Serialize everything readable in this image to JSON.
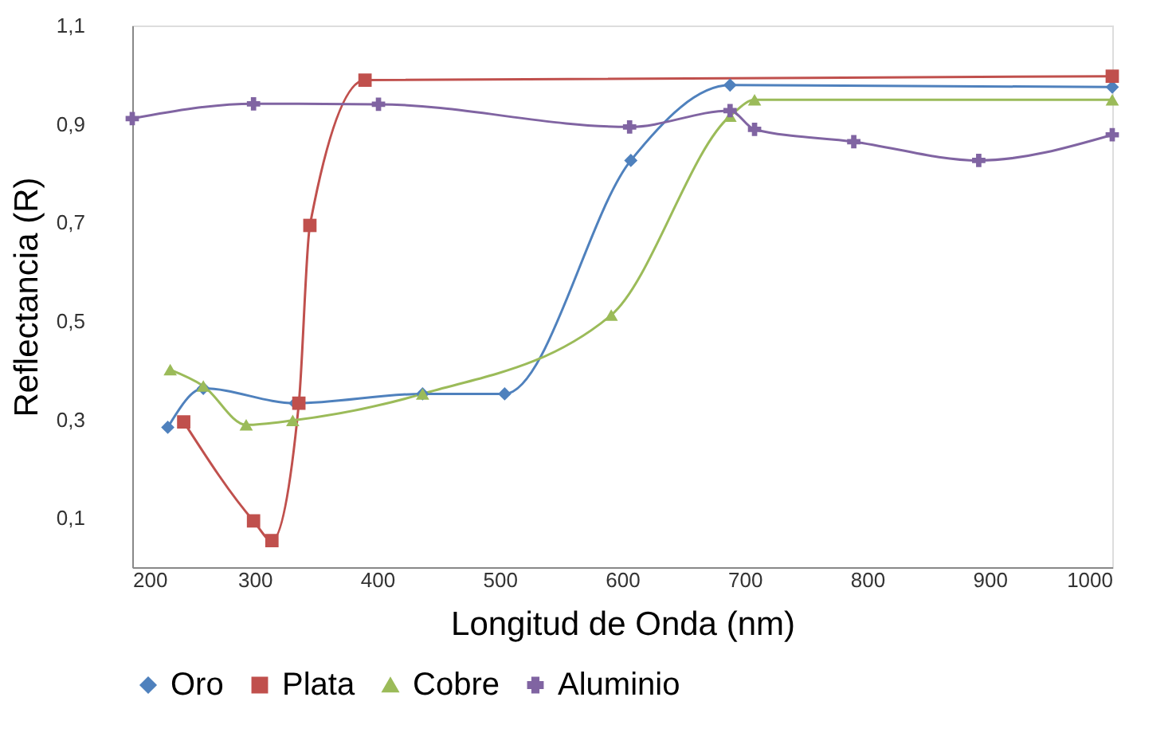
{
  "chart_data": {
    "type": "line",
    "xlabel": "Longitud de Onda (nm)",
    "ylabel": "Reflectancia (R)",
    "xlim": [
      200,
      1000
    ],
    "xticks": [
      200,
      300,
      400,
      500,
      600,
      700,
      800,
      900,
      1000
    ],
    "ylim": [
      0,
      1.1
    ],
    "yticks": [
      {
        "value": 0.1,
        "label": "0,1"
      },
      {
        "value": 0.3,
        "label": "0,3"
      },
      {
        "value": 0.5,
        "label": "0,5"
      },
      {
        "value": 0.7,
        "label": "0,7"
      },
      {
        "value": 0.9,
        "label": "0,9"
      },
      {
        "value": 1.1,
        "label": "1,1"
      }
    ],
    "grid": false,
    "legend": "bottom",
    "series": [
      {
        "name": "Oro",
        "color": "#4f81bd",
        "marker": "diamond",
        "x": [
          229,
          258,
          333,
          437,
          504,
          607,
          688,
          1000
        ],
        "values": [
          0.284,
          0.363,
          0.333,
          0.352,
          0.352,
          0.826,
          0.979,
          0.975
        ]
      },
      {
        "name": "Plata",
        "color": "#c0504d",
        "marker": "square",
        "x": [
          242,
          299,
          314,
          336,
          345,
          390,
          1000
        ],
        "values": [
          0.295,
          0.094,
          0.054,
          0.333,
          0.694,
          0.989,
          0.997
        ]
      },
      {
        "name": "Cobre",
        "color": "#9bbb59",
        "marker": "triangle",
        "x": [
          231,
          258,
          293,
          331,
          437,
          591,
          688,
          708,
          1000
        ],
        "values": [
          0.401,
          0.368,
          0.289,
          0.298,
          0.352,
          0.512,
          0.916,
          0.949,
          0.949
        ]
      },
      {
        "name": "Aluminio",
        "color": "#8064a2",
        "marker": "cross",
        "x": [
          200,
          299,
          401,
          606,
          688,
          708,
          789,
          891,
          1000
        ],
        "values": [
          0.911,
          0.941,
          0.94,
          0.894,
          0.927,
          0.889,
          0.864,
          0.826,
          0.878
        ]
      }
    ]
  }
}
